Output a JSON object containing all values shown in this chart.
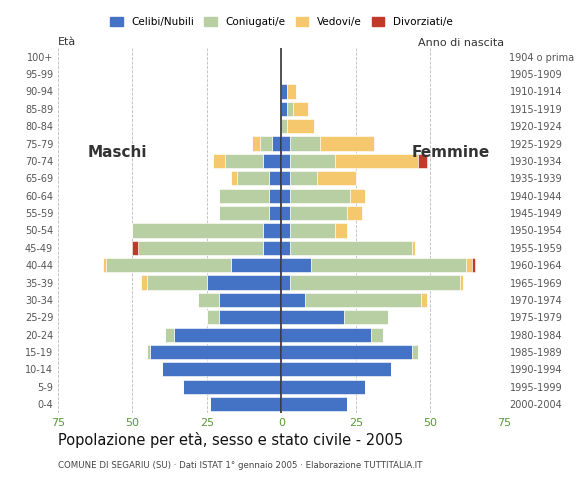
{
  "age_groups": [
    "0-4",
    "5-9",
    "10-14",
    "15-19",
    "20-24",
    "25-29",
    "30-34",
    "35-39",
    "40-44",
    "45-49",
    "50-54",
    "55-59",
    "60-64",
    "65-69",
    "70-74",
    "75-79",
    "80-84",
    "85-89",
    "90-94",
    "95-99",
    "100+"
  ],
  "birth_years": [
    "2000-2004",
    "1995-1999",
    "1990-1994",
    "1985-1989",
    "1980-1984",
    "1975-1979",
    "1970-1974",
    "1965-1969",
    "1960-1964",
    "1955-1959",
    "1950-1954",
    "1945-1949",
    "1940-1944",
    "1935-1939",
    "1930-1934",
    "1925-1929",
    "1920-1924",
    "1915-1919",
    "1910-1914",
    "1905-1909",
    "1904 o prima"
  ],
  "males": {
    "celibe": [
      24,
      33,
      40,
      44,
      36,
      21,
      21,
      25,
      17,
      6,
      6,
      4,
      4,
      4,
      6,
      3,
      0,
      0,
      0,
      0,
      0
    ],
    "coniugato": [
      0,
      0,
      0,
      1,
      3,
      4,
      7,
      20,
      42,
      42,
      44,
      17,
      17,
      11,
      13,
      4,
      0,
      0,
      0,
      0,
      0
    ],
    "vedovo": [
      0,
      0,
      0,
      0,
      0,
      0,
      0,
      2,
      1,
      0,
      0,
      0,
      0,
      2,
      4,
      3,
      0,
      0,
      0,
      0,
      0
    ],
    "divorziato": [
      0,
      0,
      0,
      0,
      0,
      0,
      0,
      0,
      0,
      2,
      0,
      0,
      0,
      0,
      0,
      0,
      0,
      0,
      0,
      0,
      0
    ]
  },
  "females": {
    "nubile": [
      22,
      28,
      37,
      44,
      30,
      21,
      8,
      3,
      10,
      3,
      3,
      3,
      3,
      3,
      3,
      3,
      0,
      2,
      2,
      0,
      0
    ],
    "coniugata": [
      0,
      0,
      0,
      2,
      4,
      15,
      39,
      57,
      52,
      41,
      15,
      19,
      20,
      9,
      15,
      10,
      2,
      2,
      0,
      0,
      0
    ],
    "vedova": [
      0,
      0,
      0,
      0,
      0,
      0,
      2,
      1,
      2,
      1,
      4,
      5,
      5,
      13,
      28,
      18,
      9,
      5,
      3,
      0,
      0
    ],
    "divorziata": [
      0,
      0,
      0,
      0,
      0,
      0,
      0,
      0,
      1,
      0,
      0,
      0,
      0,
      0,
      3,
      0,
      0,
      0,
      0,
      0,
      0
    ]
  },
  "colors": {
    "celibe_nubile": "#4472c4",
    "coniugato_a": "#b8cfa4",
    "vedovo_a": "#f5c86e",
    "divorziato_a": "#c0392b"
  },
  "xlim": 75,
  "title": "Popolazione per età, sesso e stato civile - 2005",
  "subtitle": "COMUNE DI SEGARIU (SU) · Dati ISTAT 1° gennaio 2005 · Elaborazione TUTTITALIA.IT",
  "xlabel_left": "Maschi",
  "xlabel_right": "Femmine",
  "ylabel_left": "Età",
  "ylabel_right": "Anno di nascita",
  "legend_labels": [
    "Celibi/Nubili",
    "Coniugati/e",
    "Vedovi/e",
    "Divorziati/e"
  ],
  "background_color": "#ffffff",
  "bar_edge_color": "#ffffff",
  "grid_color": "#aaaaaa"
}
